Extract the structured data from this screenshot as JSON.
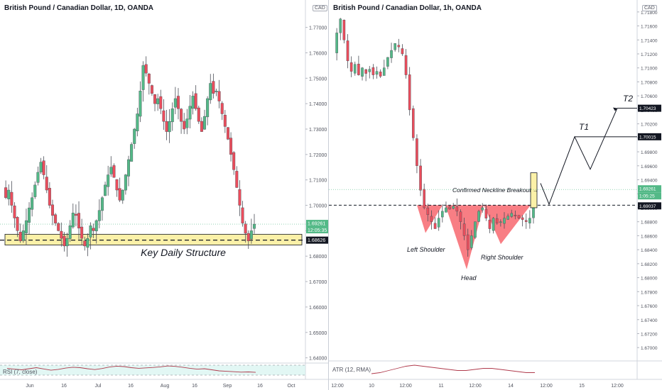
{
  "colors": {
    "up": "#53b987",
    "down": "#eb4d5c",
    "structure_fill": "#fbf1a8",
    "pattern_fill": "#f7676e",
    "breakout_fill": "#fbf1a8",
    "dark_label": "#131722",
    "current_price_label": "#53b987",
    "rsi": "#b03a4c",
    "atr": "#b03a4c"
  },
  "left_panel": {
    "title": "British Pound / Canadian Dollar, 1D, OANDA",
    "currency_badge": "CAD",
    "annotation": "Key Daily Structure",
    "indicator_label": "RSI (7, close)"
  },
  "right_panel": {
    "title": "British Pound / Canadian Dollar, 1h, OANDA",
    "currency_badge": "CAD",
    "annotations": {
      "breakout": "Confirmed Neckline Breakout",
      "left_shoulder": "Left Shoulder",
      "head": "Head",
      "right_shoulder": "Right Shoulder",
      "t1": "T1",
      "t2": "T2"
    },
    "indicator_label": "ATR (12, RMA)"
  },
  "chart_data": [
    {
      "type": "candlestick",
      "title": "British Pound / Canadian Dollar, 1D, OANDA",
      "timeframe": "1D",
      "x_ticks": [
        "Jun",
        "16",
        "Jul",
        "16",
        "Aug",
        "16",
        "Sep",
        "16",
        "Oct"
      ],
      "y_ticks": [
        "1.77000",
        "1.76000",
        "1.75000",
        "1.74000",
        "1.73000",
        "1.72000",
        "1.71000",
        "1.70000",
        "1.69000",
        "1.68000",
        "1.67000",
        "1.66000",
        "1.65000",
        "1.64000"
      ],
      "ylim": [
        1.6385,
        1.7752
      ],
      "price_labels": {
        "current": "1.69261",
        "countdown": "12:05:35",
        "structure": "1.68626"
      },
      "key_structure_zone": [
        1.6855,
        1.6875
      ],
      "key_structure_level": 1.6863,
      "indicator": {
        "name": "RSI (7, close)",
        "values": [
          52,
          48,
          45,
          50,
          55,
          49,
          43,
          47,
          53,
          57,
          55,
          50,
          46,
          51,
          58,
          62,
          60,
          55,
          52,
          54,
          56,
          59,
          63,
          61,
          57,
          52,
          48,
          50,
          45,
          40,
          38,
          36,
          34,
          35,
          33
        ]
      }
    },
    {
      "type": "candlestick",
      "title": "British Pound / Canadian Dollar, 1h, OANDA",
      "timeframe": "1h",
      "x_ticks": [
        "12:00",
        "10",
        "12:00",
        "11",
        "12:00",
        "14",
        "12:00",
        "15",
        "12:00"
      ],
      "y_ticks": [
        "1.71800",
        "1.71600",
        "1.71400",
        "1.71200",
        "1.71000",
        "1.70800",
        "1.70600",
        "1.70400",
        "1.70200",
        "1.70000",
        "1.69800",
        "1.69600",
        "1.69400",
        "1.69200",
        "1.69000",
        "1.68800",
        "1.68600",
        "1.68400",
        "1.68200",
        "1.68000",
        "1.67800",
        "1.67600",
        "1.67400",
        "1.67200",
        "1.67000"
      ],
      "ylim": [
        1.6685,
        1.7192
      ],
      "price_labels": {
        "current": "1.69261",
        "countdown": "1:05:25",
        "neckline": "1.69037",
        "t1": "1.70015",
        "t2": "1.70423"
      },
      "neckline": 1.69037,
      "targets": {
        "T1": 1.70015,
        "T2": 1.70423
      },
      "pattern": "Inverse head and shoulders",
      "indicator": {
        "name": "ATR (12, RMA)",
        "values": [
          2,
          3,
          5,
          7,
          9,
          10,
          9,
          8,
          7,
          6,
          5,
          5,
          6,
          7,
          7,
          6,
          5,
          4,
          3,
          3
        ]
      }
    }
  ]
}
